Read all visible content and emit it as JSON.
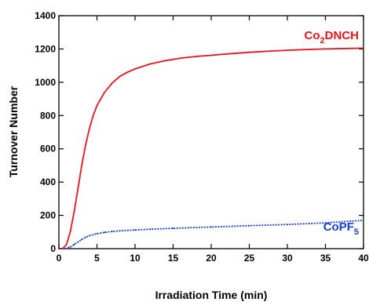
{
  "chart_data": {
    "type": "line",
    "xlabel": "Irradiation Time (min)",
    "ylabel": "Turnover Number",
    "xlim": [
      0,
      40
    ],
    "ylim": [
      0,
      1400
    ],
    "xticks": [
      0,
      5,
      10,
      15,
      20,
      25,
      30,
      35,
      40
    ],
    "yticks": [
      0,
      200,
      400,
      600,
      800,
      1000,
      1200,
      1400
    ],
    "grid": false,
    "series": [
      {
        "name": "Co2DNCH",
        "label_main": "Co",
        "label_sub": "2",
        "label_tail": "DNCH",
        "color": "#e8141c",
        "x": [
          0.5,
          1,
          1.5,
          2,
          2.5,
          3,
          3.5,
          4,
          4.5,
          5,
          6,
          7,
          8,
          9,
          10,
          12,
          14,
          16,
          18,
          20,
          22,
          25,
          28,
          30,
          32,
          35,
          38,
          40
        ],
        "y": [
          0,
          25,
          100,
          220,
          360,
          500,
          620,
          720,
          800,
          860,
          940,
          995,
          1035,
          1060,
          1080,
          1110,
          1130,
          1145,
          1155,
          1162,
          1170,
          1180,
          1188,
          1192,
          1196,
          1200,
          1203,
          1205
        ]
      },
      {
        "name": "CoPF5",
        "label_main": "CoPF",
        "label_sub": "5",
        "label_tail": "",
        "color": "#1a3fd0",
        "x": [
          0.8,
          1.5,
          2,
          2.5,
          3,
          3.5,
          4,
          5,
          6,
          7,
          8,
          10,
          12,
          15,
          20,
          25,
          30,
          35,
          40
        ],
        "y": [
          0,
          10,
          25,
          40,
          55,
          68,
          78,
          90,
          98,
          103,
          107,
          112,
          117,
          122,
          130,
          138,
          145,
          155,
          170
        ]
      }
    ]
  }
}
